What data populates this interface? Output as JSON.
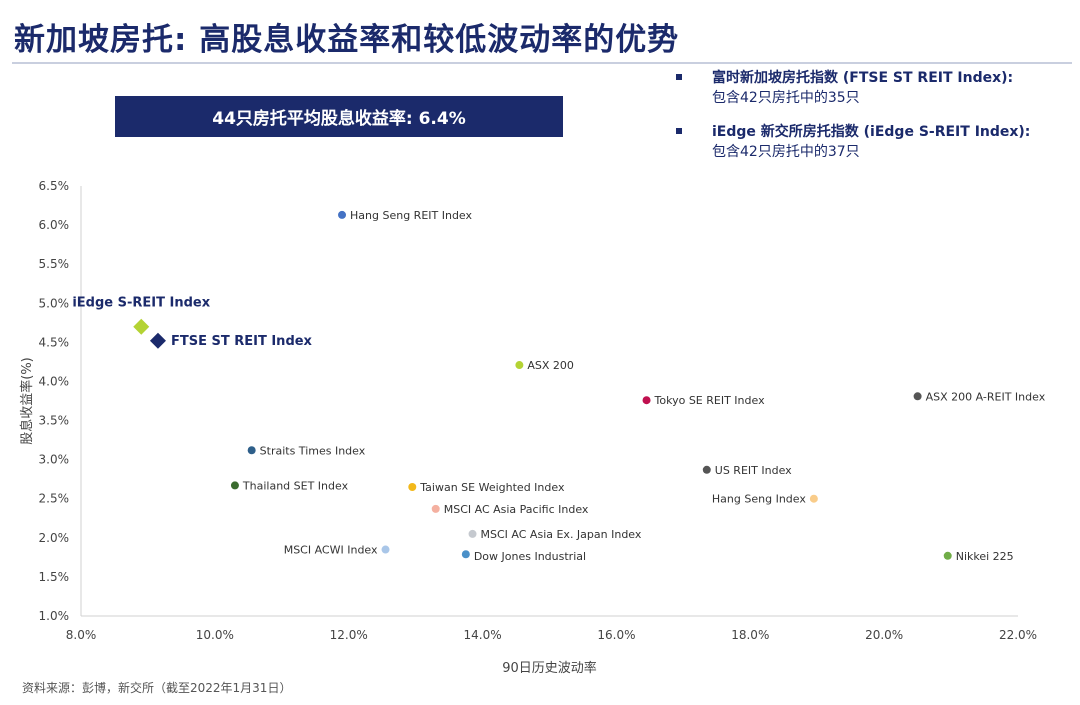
{
  "header": {
    "title": "新加坡房托: 高股息收益率和较低波动率的优势",
    "banner": "44只房托平均股息收益率: 6.4%"
  },
  "notes": [
    {
      "line1": "富时新加坡房托指数 (FTSE ST REIT Index):",
      "line2": "包含42只房托中的35只"
    },
    {
      "line1": "iEdge 新交所房托指数 (iEdge S-REIT Index):",
      "line2": "包含42只房托中的37只"
    }
  ],
  "source": "资料来源：彭博，新交所（截至2022年1月31日）",
  "colors": {
    "navy": "#1b2a6b",
    "axis": "#d0d0d0"
  },
  "chart_data": {
    "type": "scatter",
    "xlabel": "90日历史波动率",
    "ylabel": "股息收益率(%)",
    "xlim": [
      8.0,
      22.0
    ],
    "ylim": [
      1.0,
      6.5
    ],
    "x_ticks": [
      "8.0%",
      "10.0%",
      "12.0%",
      "14.0%",
      "16.0%",
      "18.0%",
      "20.0%",
      "22.0%"
    ],
    "x_tick_values": [
      8,
      10,
      12,
      14,
      16,
      18,
      20,
      22
    ],
    "y_ticks": [
      "1.0%",
      "1.5%",
      "2.0%",
      "2.5%",
      "3.0%",
      "3.5%",
      "4.0%",
      "4.5%",
      "5.0%",
      "5.5%",
      "6.0%",
      "6.5%"
    ],
    "y_tick_values": [
      1.0,
      1.5,
      2.0,
      2.5,
      3.0,
      3.5,
      4.0,
      4.5,
      5.0,
      5.5,
      6.0,
      6.5
    ],
    "points": [
      {
        "label": "Hang Seng REIT Index",
        "x": 11.9,
        "y": 6.13,
        "color": "#4472c4",
        "shape": "circle",
        "label_side": "right",
        "bold": false
      },
      {
        "label": "iEdge S-REIT Index",
        "x": 8.9,
        "y": 4.7,
        "color": "#b4d334",
        "shape": "diamond",
        "label_side": "above",
        "bold": true
      },
      {
        "label": "FTSE ST REIT Index",
        "x": 9.15,
        "y": 4.52,
        "color": "#1b2a6b",
        "shape": "diamond",
        "label_side": "right",
        "bold": true
      },
      {
        "label": "ASX 200",
        "x": 14.55,
        "y": 4.21,
        "color": "#b4d334",
        "shape": "circle",
        "label_side": "right",
        "bold": false
      },
      {
        "label": "Tokyo SE REIT Index",
        "x": 16.45,
        "y": 3.76,
        "color": "#c0104f",
        "shape": "circle",
        "label_side": "right",
        "bold": false
      },
      {
        "label": "ASX 200 A-REIT Index",
        "x": 20.5,
        "y": 3.81,
        "color": "#555555",
        "shape": "circle",
        "label_side": "right",
        "bold": false
      },
      {
        "label": "Straits Times Index",
        "x": 10.55,
        "y": 3.12,
        "color": "#2e5f8a",
        "shape": "circle",
        "label_side": "right",
        "bold": false
      },
      {
        "label": "US REIT Index",
        "x": 17.35,
        "y": 2.87,
        "color": "#555555",
        "shape": "circle",
        "label_side": "right",
        "bold": false
      },
      {
        "label": "Thailand SET Index",
        "x": 10.3,
        "y": 2.67,
        "color": "#3a6b2e",
        "shape": "circle",
        "label_side": "right",
        "bold": false
      },
      {
        "label": "Taiwan SE Weighted Index",
        "x": 12.95,
        "y": 2.65,
        "color": "#f2b81a",
        "shape": "circle",
        "label_side": "right",
        "bold": false
      },
      {
        "label": "Hang Seng Index",
        "x": 18.95,
        "y": 2.5,
        "color": "#f9cc8a",
        "shape": "circle",
        "label_side": "left",
        "bold": false
      },
      {
        "label": "MSCI AC Asia Pacific Index",
        "x": 13.3,
        "y": 2.37,
        "color": "#f4b0a0",
        "shape": "circle",
        "label_side": "right",
        "bold": false
      },
      {
        "label": "MSCI AC Asia Ex. Japan Index",
        "x": 13.85,
        "y": 2.05,
        "color": "#c5c9cf",
        "shape": "circle",
        "label_side": "right",
        "bold": false
      },
      {
        "label": "MSCI ACWI Index",
        "x": 12.55,
        "y": 1.85,
        "color": "#a9c6e8",
        "shape": "circle",
        "label_side": "left",
        "bold": false
      },
      {
        "label": "Dow Jones Industrial",
        "x": 13.75,
        "y": 1.79,
        "color": "#4a90c8",
        "shape": "circle",
        "label_side": "below-right",
        "bold": false
      },
      {
        "label": "Nikkei 225",
        "x": 20.95,
        "y": 1.77,
        "color": "#70ad47",
        "shape": "circle",
        "label_side": "right",
        "bold": false
      }
    ]
  }
}
